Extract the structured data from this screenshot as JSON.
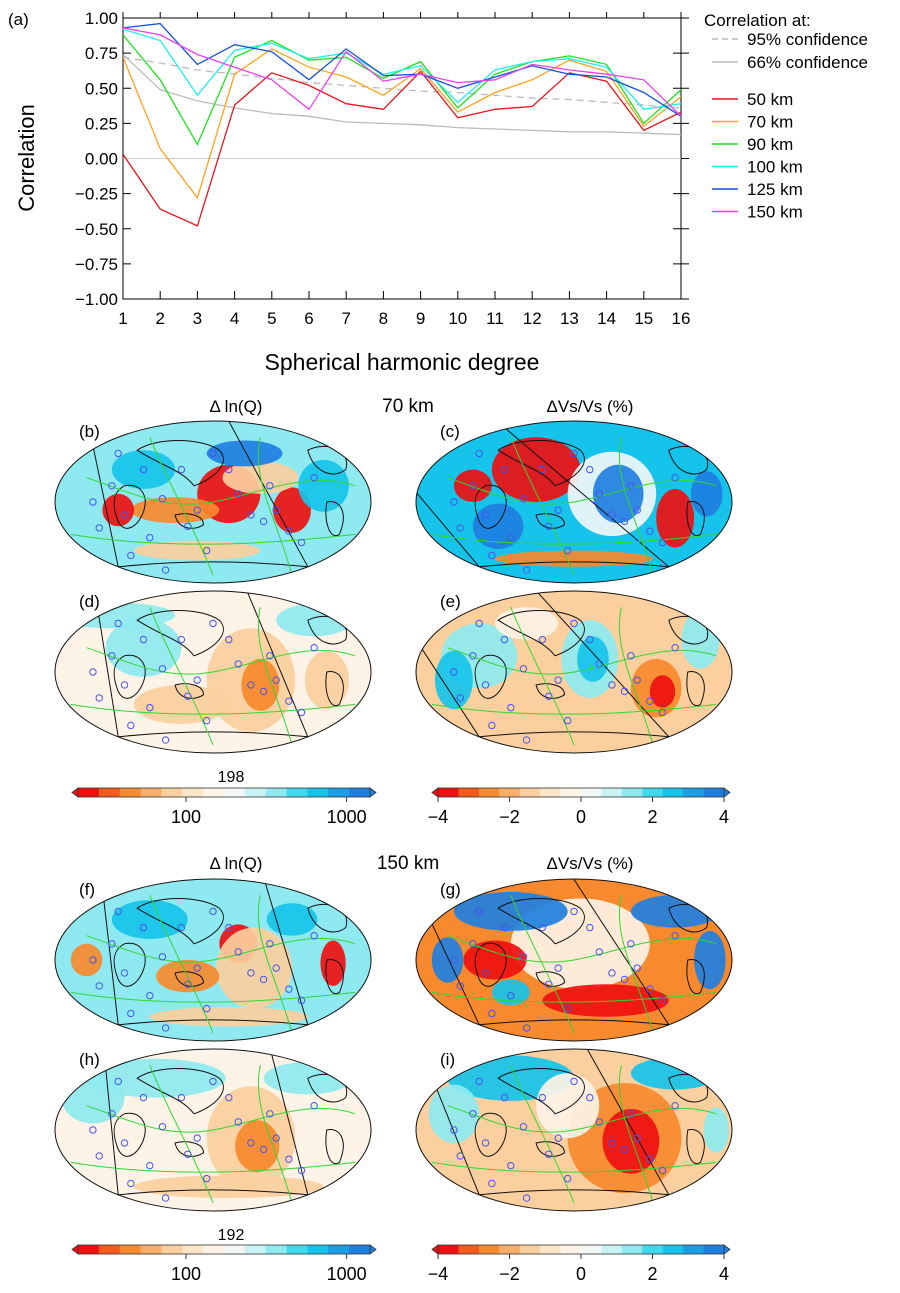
{
  "chart_data": {
    "type": "line",
    "panel_label": "(a)",
    "xlabel": "Spherical harmonic degree",
    "ylabel": "Correlation",
    "xlim": [
      1,
      16
    ],
    "ylim": [
      -1.0,
      1.0
    ],
    "x_ticks": [
      "1",
      "2",
      "3",
      "4",
      "5",
      "6",
      "7",
      "8",
      "9",
      "10",
      "11",
      "12",
      "13",
      "14",
      "15",
      "16"
    ],
    "y_ticks": [
      "1.00",
      "0.75",
      "0.50",
      "0.25",
      "0.00",
      "−0.25",
      "−0.50",
      "−0.75",
      "−1.00"
    ],
    "legend_title": "Correlation at:",
    "legend_position": "right",
    "x": [
      1,
      2,
      3,
      4,
      5,
      6,
      7,
      8,
      9,
      10,
      11,
      12,
      13,
      14,
      15,
      16
    ],
    "confidence": [
      {
        "name": "95% confidence",
        "color": "#bbbbbb",
        "dashed": true,
        "values": [
          0.72,
          0.68,
          0.63,
          0.6,
          0.57,
          0.54,
          0.52,
          0.5,
          0.48,
          0.47,
          0.45,
          0.43,
          0.42,
          0.4,
          0.38,
          0.36
        ]
      },
      {
        "name": "66% confidence",
        "color": "#bbbbbb",
        "dashed": false,
        "values": [
          0.74,
          0.49,
          0.41,
          0.36,
          0.32,
          0.3,
          0.26,
          0.25,
          0.24,
          0.22,
          0.21,
          0.2,
          0.19,
          0.19,
          0.18,
          0.17
        ]
      }
    ],
    "series": [
      {
        "name": "50 km",
        "color": "#e8141c",
        "values": [
          0.03,
          -0.36,
          -0.48,
          0.38,
          0.61,
          0.52,
          0.39,
          0.35,
          0.62,
          0.29,
          0.35,
          0.37,
          0.61,
          0.55,
          0.2,
          0.33
        ]
      },
      {
        "name": "70 km",
        "color": "#ffa21e",
        "values": [
          0.72,
          0.07,
          -0.28,
          0.6,
          0.78,
          0.65,
          0.58,
          0.45,
          0.64,
          0.33,
          0.47,
          0.56,
          0.7,
          0.62,
          0.23,
          0.44
        ]
      },
      {
        "name": "90 km",
        "color": "#1de41d",
        "values": [
          0.88,
          0.56,
          0.1,
          0.72,
          0.84,
          0.7,
          0.72,
          0.57,
          0.69,
          0.36,
          0.6,
          0.69,
          0.73,
          0.67,
          0.25,
          0.49
        ]
      },
      {
        "name": "100 km",
        "color": "#1cf0f0",
        "values": [
          0.92,
          0.84,
          0.45,
          0.77,
          0.82,
          0.71,
          0.75,
          0.6,
          0.66,
          0.4,
          0.63,
          0.69,
          0.71,
          0.65,
          0.35,
          0.39
        ]
      },
      {
        "name": "125 km",
        "color": "#1551d8",
        "values": [
          0.93,
          0.96,
          0.67,
          0.81,
          0.76,
          0.56,
          0.78,
          0.59,
          0.6,
          0.5,
          0.58,
          0.66,
          0.6,
          0.58,
          0.47,
          0.3
        ]
      },
      {
        "name": "150 km",
        "color": "#ee3ef0",
        "values": [
          0.93,
          0.88,
          0.74,
          0.65,
          0.56,
          0.35,
          0.76,
          0.55,
          0.6,
          0.54,
          0.56,
          0.67,
          0.63,
          0.6,
          0.56,
          0.3
        ]
      }
    ]
  },
  "maps": {
    "row_groups": [
      {
        "depth": "70 km",
        "left_title": "Δ ln(Q)",
        "right_title": "ΔVs/Vs (%)",
        "ref_value": "198",
        "panels": [
          {
            "label": "(b)",
            "field": "q-full"
          },
          {
            "label": "(c)",
            "field": "vs-full"
          },
          {
            "label": "(d)",
            "field": "q-smooth"
          },
          {
            "label": "(e)",
            "field": "vs-smooth"
          }
        ]
      },
      {
        "depth": "150 km",
        "left_title": "Δ ln(Q)",
        "right_title": "ΔVs/Vs (%)",
        "ref_value": "192",
        "panels": [
          {
            "label": "(f)",
            "field": "q-full"
          },
          {
            "label": "(g)",
            "field": "vs-full"
          },
          {
            "label": "(h)",
            "field": "q-smooth"
          },
          {
            "label": "(i)",
            "field": "vs-smooth"
          }
        ]
      }
    ],
    "q_colorbar": {
      "tick_labels": [
        "100",
        "1000"
      ],
      "scale": "log"
    },
    "vs_colorbar": {
      "tick_labels": [
        "−4",
        "−2",
        "0",
        "2",
        "4"
      ],
      "range": [
        -4,
        4
      ]
    },
    "colors": [
      "#ee1010",
      "#f55a1a",
      "#f7892e",
      "#f9ad6a",
      "#fbcf9e",
      "#fce6c8",
      "#fdf3e6",
      "#f2f7f8",
      "#c8f2f4",
      "#8eeaf0",
      "#3ed9ec",
      "#16c3ea",
      "#1c9ee6",
      "#1f7fe0"
    ]
  }
}
